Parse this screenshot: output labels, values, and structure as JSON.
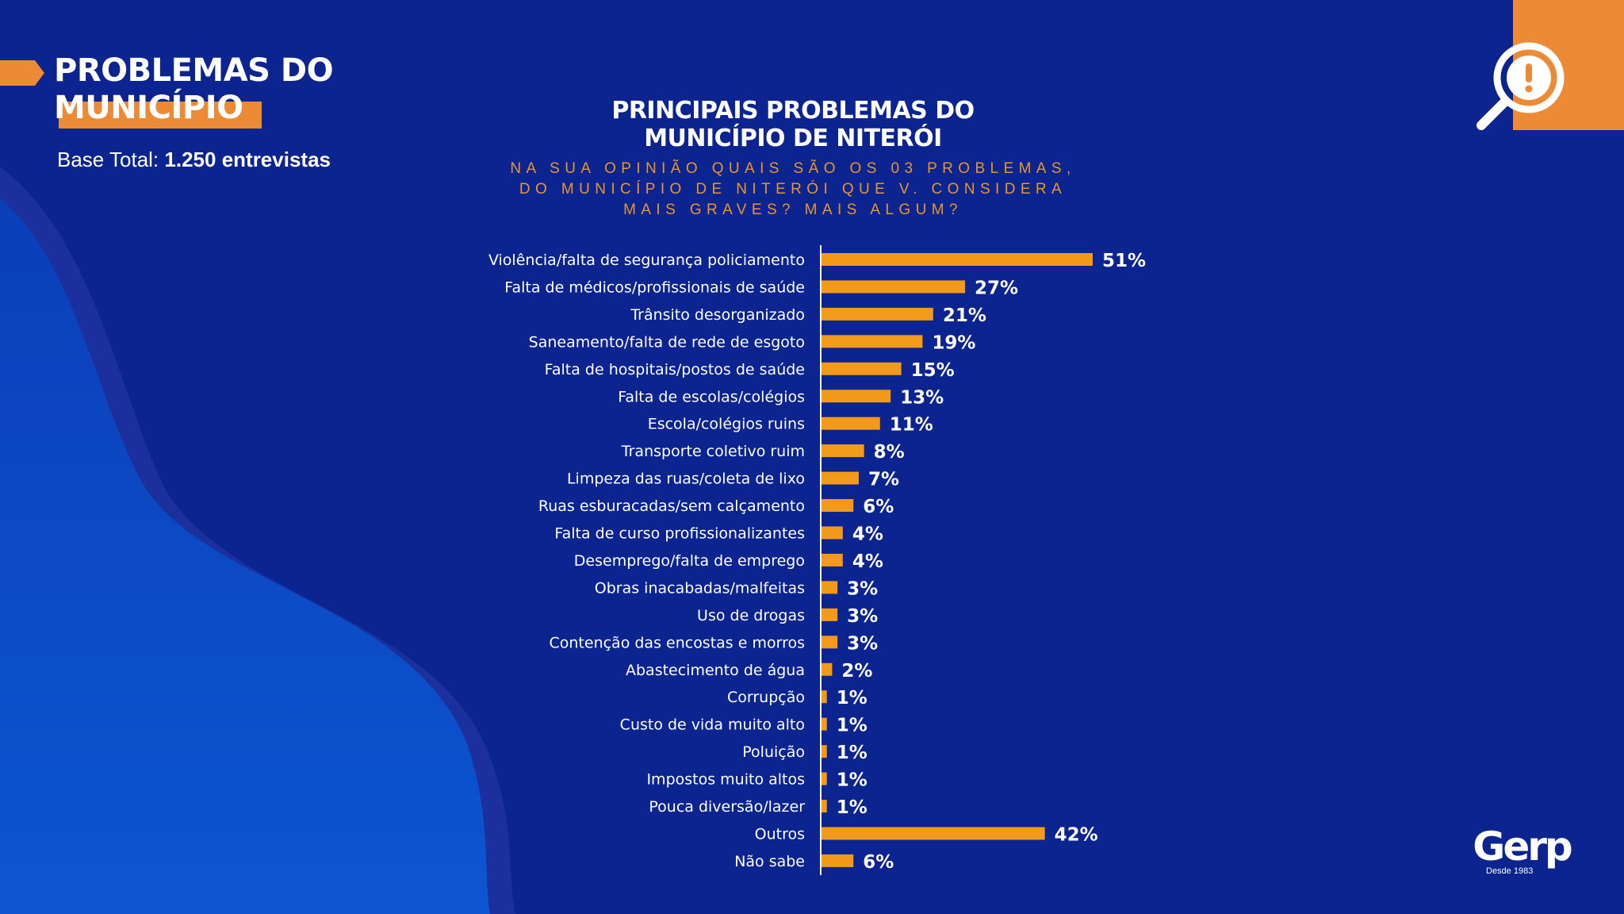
{
  "header": {
    "title_line1": "PROBLEMAS DO",
    "title_line2": "MUNICÍPIO",
    "base_label": "Base Total:",
    "base_value": "1.250 entrevistas"
  },
  "chart": {
    "title_line1": "PRINCIPAIS PROBLEMAS DO",
    "title_line2": "MUNICÍPIO DE NITERÓI",
    "question_line1": "NA SUA OPINIÃO QUAIS SÃO OS 03 PROBLEMAS,",
    "question_line2": "DO MUNICÍPIO DE NITERÓI QUE V. CONSIDERA",
    "question_line3": "MAIS GRAVES? MAIS ALGUM?"
  },
  "logo": {
    "wordmark": "Gerp",
    "tagline": "Desde 1983"
  },
  "icons": {
    "corner_icon": "magnifier-alert-icon",
    "title_marker": "arrow-tab-icon"
  },
  "colors": {
    "background": "#0b2490",
    "accent": "#ec8a35",
    "bar": "#f39a1a",
    "question_text": "#e8952e"
  },
  "chart_data": {
    "type": "bar",
    "orientation": "horizontal",
    "title": "PRINCIPAIS PROBLEMAS DO MUNICÍPIO DE NITERÓI",
    "subtitle": "NA SUA OPINIÃO QUAIS SÃO OS 03 PROBLEMAS, DO MUNICÍPIO DE NITERÓI QUE V. CONSIDERA MAIS GRAVES? MAIS ALGUM?",
    "categories": [
      "Violência/falta de segurança policiamento",
      "Falta de médicos/profissionais de saúde",
      "Trânsito desorganizado",
      "Saneamento/falta de rede de esgoto",
      "Falta de hospitais/postos de saúde",
      "Falta de escolas/colégios",
      "Escola/colégios ruins",
      "Transporte coletivo ruim",
      "Limpeza das ruas/coleta de lixo",
      "Ruas esburacadas/sem calçamento",
      "Falta de curso profissionalizantes",
      "Desemprego/falta de emprego",
      "Obras inacabadas/malfeitas",
      "Uso de drogas",
      "Contenção das encostas e morros",
      "Abastecimento de água",
      "Corrupção",
      "Custo de vida muito alto",
      "Poluição",
      "Impostos muito altos",
      "Pouca diversão/lazer",
      "Outros",
      "Não sabe"
    ],
    "values": [
      51,
      27,
      21,
      19,
      15,
      13,
      11,
      8,
      7,
      6,
      4,
      4,
      3,
      3,
      3,
      2,
      1,
      1,
      1,
      1,
      1,
      42,
      6
    ],
    "value_labels": [
      "51%",
      "27%",
      "21%",
      "19%",
      "15%",
      "13%",
      "11%",
      "8%",
      "7%",
      "6%",
      "4%",
      "4%",
      "3%",
      "3%",
      "3%",
      "2%",
      "1%",
      "1%",
      "1%",
      "1%",
      "1%",
      "42%",
      "6%"
    ],
    "unit": "%",
    "xlim": [
      0,
      51
    ],
    "grid": false,
    "legend": "none"
  }
}
